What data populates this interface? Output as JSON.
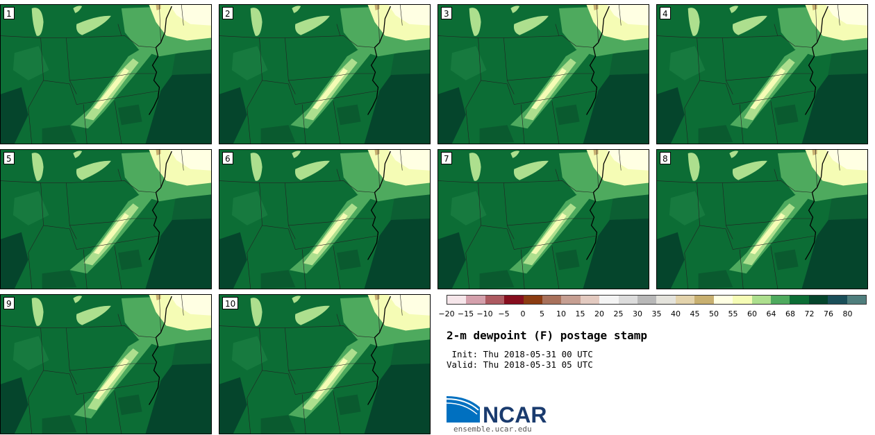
{
  "members": [
    {
      "label": "1"
    },
    {
      "label": "2"
    },
    {
      "label": "3"
    },
    {
      "label": "4"
    },
    {
      "label": "5"
    },
    {
      "label": "6"
    },
    {
      "label": "7"
    },
    {
      "label": "8"
    },
    {
      "label": "9"
    },
    {
      "label": "10"
    }
  ],
  "colorbar": {
    "colors": [
      "#f6e6ea",
      "#d4a0ac",
      "#ad5a61",
      "#860e1e",
      "#8b3c12",
      "#a8715b",
      "#c69f92",
      "#e3cac0",
      "#f4f4f4",
      "#dcdcdc",
      "#b8b8b8",
      "#e4e3dc",
      "#e3d3ac",
      "#c8b070",
      "#ffffe3",
      "#f5fcb5",
      "#addf8e",
      "#4eaa5e",
      "#0c6d35",
      "#05452c",
      "#1a4f59",
      "#4f7e7d"
    ],
    "tick_labels": [
      "−20",
      "−15",
      "−10",
      "−5",
      "0",
      "5",
      "10",
      "15",
      "20",
      "25",
      "30",
      "35",
      "40",
      "45",
      "50",
      "55",
      "60",
      "64",
      "68",
      "72",
      "76",
      "80"
    ]
  },
  "title": "2-m dewpoint (F) postage stamp",
  "init_text": " Init: Thu 2018-05-31 00 UTC",
  "valid_text": "Valid: Thu 2018-05-31 05 UTC",
  "logo_text": "NCAR",
  "website": "ensemble.ucar.edu",
  "map_palette": {
    "ocean": "#05452c",
    "land_base": "#0c6d35",
    "moist_72": "#05452c",
    "mid_64": "#4eaa5e",
    "dry_60": "#addf8e",
    "drier_55": "#f5fcb5",
    "driest_50": "#ffffe3",
    "lake": "#addf8e",
    "tan_45": "#c8b070"
  }
}
